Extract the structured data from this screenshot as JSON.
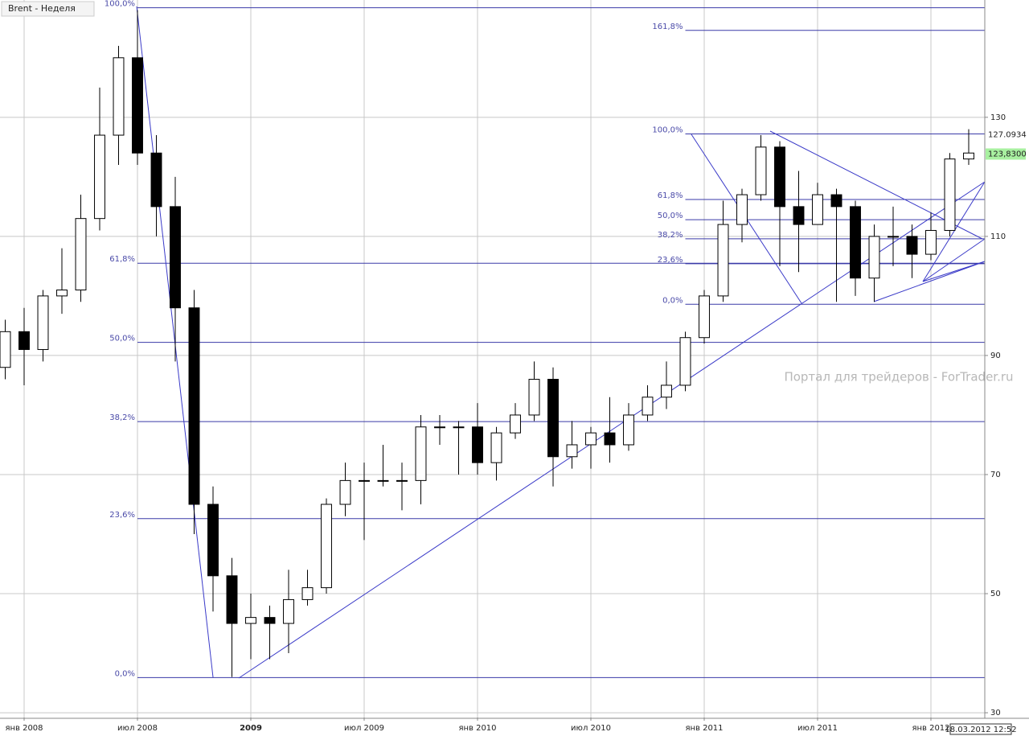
{
  "chart_data": {
    "type": "candlestick",
    "title": "Brent - Неделя",
    "watermark": "Портал для трейдеров - ForTrader.ru",
    "timestamp": "18.03.2012 12:52",
    "up_color": "#ffffff",
    "down_color": "#000000",
    "grid": true,
    "x": [
      "2007-12",
      "2008-01",
      "2008-02",
      "2008-03",
      "2008-04",
      "2008-05",
      "2008-06",
      "2008-07",
      "2008-08",
      "2008-09",
      "2008-10",
      "2008-11",
      "2008-12",
      "2009-01",
      "2009-02",
      "2009-03",
      "2009-04",
      "2009-05",
      "2009-06",
      "2009-07",
      "2009-08",
      "2009-09",
      "2009-10",
      "2009-11",
      "2009-12",
      "2010-01",
      "2010-02",
      "2010-03",
      "2010-04",
      "2010-05",
      "2010-06",
      "2010-07",
      "2010-08",
      "2010-09",
      "2010-10",
      "2010-11",
      "2010-12",
      "2011-01",
      "2011-02",
      "2011-03",
      "2011-04",
      "2011-05",
      "2011-06",
      "2011-07",
      "2011-08",
      "2011-09",
      "2011-10",
      "2011-11",
      "2011-12",
      "2012-01",
      "2012-02",
      "2012-03"
    ],
    "open": [
      88,
      94,
      91,
      100,
      101,
      113,
      127,
      140,
      124,
      115,
      98,
      65,
      53,
      45,
      46,
      45,
      49,
      51,
      65,
      69,
      69,
      69,
      69,
      78,
      78,
      78,
      72,
      77,
      80,
      86,
      73,
      75,
      77,
      75,
      80,
      83,
      85,
      93,
      100,
      112,
      117,
      125,
      115,
      112,
      117,
      115,
      103,
      110,
      110,
      107,
      111,
      123
    ],
    "high": [
      96,
      98,
      101,
      108,
      117,
      135,
      142,
      148,
      127,
      120,
      101,
      68,
      56,
      50,
      48,
      54,
      54,
      66,
      72,
      72,
      75,
      72,
      80,
      80,
      79,
      82,
      78,
      82,
      89,
      88,
      79,
      78,
      83,
      82,
      85,
      89,
      94,
      101,
      116,
      118,
      127,
      126,
      121,
      119,
      118,
      116,
      112,
      115,
      112,
      114,
      124,
      128
    ],
    "low": [
      86,
      85,
      89,
      97,
      99,
      111,
      122,
      122,
      110,
      89,
      60,
      47,
      36,
      39,
      39,
      40,
      48,
      50,
      63,
      59,
      68,
      64,
      65,
      75,
      70,
      70,
      69,
      76,
      79,
      68,
      71,
      71,
      72,
      74,
      79,
      81,
      84,
      92,
      99,
      109,
      116,
      105,
      104,
      112,
      99,
      100,
      99,
      105,
      103,
      106,
      110,
      122
    ],
    "close": [
      94,
      91,
      100,
      101,
      113,
      127,
      140,
      124,
      115,
      98,
      65,
      53,
      45,
      46,
      45,
      49,
      51,
      65,
      69,
      69,
      69,
      69,
      78,
      78,
      78,
      72,
      77,
      80,
      86,
      73,
      75,
      77,
      75,
      80,
      83,
      85,
      93,
      100,
      112,
      117,
      125,
      115,
      112,
      117,
      115,
      103,
      110,
      110,
      107,
      111,
      123,
      124
    ],
    "xlim": [
      "2007-12",
      "2012-03"
    ],
    "xticks": [
      {
        "value": "2008-01",
        "label": "янв 2008"
      },
      {
        "value": "2008-07",
        "label": "июл 2008"
      },
      {
        "value": "2009-01",
        "label": "2009",
        "bold": true
      },
      {
        "value": "2009-07",
        "label": "июл 2009"
      },
      {
        "value": "2010-01",
        "label": "янв 2010"
      },
      {
        "value": "2010-07",
        "label": "июл 2010"
      },
      {
        "value": "2011-01",
        "label": "янв 2011"
      },
      {
        "value": "2011-07",
        "label": "июл 2011"
      },
      {
        "value": "2012-01",
        "label": "янв 2012"
      }
    ],
    "ylim": [
      29.2,
      149.7
    ],
    "yticks": [
      30,
      50,
      70,
      90,
      110,
      130
    ],
    "fibonacci": [
      {
        "from": "2008-07",
        "levels": [
          {
            "value": 148.4,
            "label": "100,0%"
          },
          {
            "value": 105.5,
            "label": "61,8%"
          },
          {
            "value": 92.2,
            "label": "50,0%"
          },
          {
            "value": 78.9,
            "label": "38,2%"
          },
          {
            "value": 62.6,
            "label": "23,6%"
          },
          {
            "value": 35.9,
            "label": "0,0%"
          }
        ]
      },
      {
        "from": "2010-12",
        "levels": [
          {
            "value": 144.6,
            "label": "161,8%"
          },
          {
            "value": 127.2,
            "label": "100,0%"
          },
          {
            "value": 116.2,
            "label": "61,8%"
          },
          {
            "value": 112.8,
            "label": "50,0%"
          },
          {
            "value": 109.6,
            "label": "38,2%"
          },
          {
            "value": 105.4,
            "label": "23,6%"
          },
          {
            "value": 98.6,
            "label": "0,0%"
          }
        ]
      }
    ],
    "fib_color": "#3a3aa8",
    "price_labels": [
      {
        "value": 127.0934,
        "label": "127.0934",
        "color": "#ffffff"
      },
      {
        "value": 123.83,
        "label": "123,8300",
        "color": "#a8f0a0"
      }
    ]
  }
}
